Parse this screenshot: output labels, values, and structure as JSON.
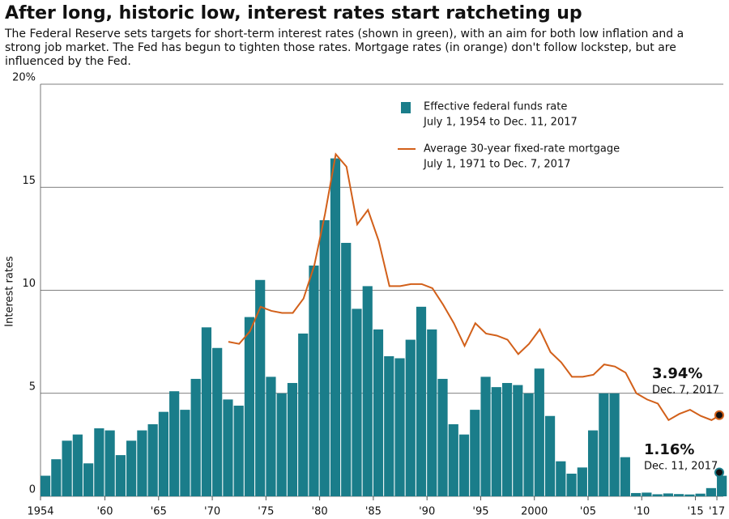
{
  "chart_data": {
    "type": "bar-line",
    "title": "After long, historic low, interest rates start ratcheting up",
    "subtitle": "The Federal Reserve sets targets for short-term interest rates (shown in green), with an aim for both low inflation and a strong job market. The Fed has begun to tighten those rates. Mortgage rates (in orange) don't follow lockstep, but are influenced by the Fed.",
    "y_label": "Interest rates",
    "x": [
      1954,
      1955,
      1956,
      1957,
      1958,
      1959,
      1960,
      1961,
      1962,
      1963,
      1964,
      1965,
      1966,
      1967,
      1968,
      1969,
      1970,
      1971,
      1972,
      1973,
      1974,
      1975,
      1976,
      1977,
      1978,
      1979,
      1980,
      1981,
      1982,
      1983,
      1984,
      1985,
      1986,
      1987,
      1988,
      1989,
      1990,
      1991,
      1992,
      1993,
      1994,
      1995,
      1996,
      1997,
      1998,
      1999,
      2000,
      2001,
      2002,
      2003,
      2004,
      2005,
      2006,
      2007,
      2008,
      2009,
      2010,
      2011,
      2012,
      2013,
      2014,
      2015,
      2016,
      2017
    ],
    "series": [
      {
        "name": "Effective federal funds rate",
        "range": "July 1, 1954 to Dec. 11, 2017",
        "color": "#1a7d8a",
        "kind": "bar",
        "values": [
          1.0,
          1.8,
          2.7,
          3.0,
          1.6,
          3.3,
          3.2,
          2.0,
          2.7,
          3.2,
          3.5,
          4.1,
          5.1,
          4.2,
          5.7,
          8.2,
          7.2,
          4.7,
          4.4,
          8.7,
          10.5,
          5.8,
          5.0,
          5.5,
          7.9,
          11.2,
          13.4,
          16.4,
          12.3,
          9.1,
          10.2,
          8.1,
          6.8,
          6.7,
          7.6,
          9.2,
          8.1,
          5.7,
          3.5,
          3.0,
          4.2,
          5.8,
          5.3,
          5.5,
          5.4,
          5.0,
          6.2,
          3.9,
          1.7,
          1.1,
          1.4,
          3.2,
          5.0,
          5.0,
          1.9,
          0.16,
          0.18,
          0.1,
          0.14,
          0.11,
          0.09,
          0.13,
          0.4,
          1.0
        ]
      },
      {
        "name": "Average 30-year fixed-rate mortgage",
        "range": "July 1, 1971 to Dec. 7, 2017",
        "color": "#d2601a",
        "kind": "line",
        "values": [
          null,
          null,
          null,
          null,
          null,
          null,
          null,
          null,
          null,
          null,
          null,
          null,
          null,
          null,
          null,
          null,
          null,
          7.5,
          7.4,
          8.0,
          9.2,
          9.0,
          8.9,
          8.9,
          9.6,
          11.2,
          13.7,
          16.6,
          16.0,
          13.2,
          13.9,
          12.4,
          10.2,
          10.2,
          10.3,
          10.3,
          10.1,
          9.3,
          8.4,
          7.3,
          8.4,
          7.9,
          7.8,
          7.6,
          6.9,
          7.4,
          8.1,
          7.0,
          6.5,
          5.8,
          5.8,
          5.9,
          6.4,
          6.3,
          6.0,
          5.0,
          4.7,
          4.5,
          3.7,
          4.0,
          4.2,
          3.9,
          3.7,
          4.0
        ]
      }
    ],
    "annotations": [
      {
        "value": 3.94,
        "label": "3.94%",
        "date": "Dec. 7, 2017",
        "series": 1
      },
      {
        "value": 1.16,
        "label": "1.16%",
        "date": "Dec. 11, 2017",
        "series": 0
      }
    ],
    "xlim": [
      1954,
      2017.6
    ],
    "xticks": [
      {
        "value": 1954,
        "label": "1954"
      },
      {
        "value": 1960,
        "label": "'60"
      },
      {
        "value": 1965,
        "label": "'65"
      },
      {
        "value": 1970,
        "label": "'70"
      },
      {
        "value": 1975,
        "label": "'75"
      },
      {
        "value": 1980,
        "label": "'80"
      },
      {
        "value": 1985,
        "label": "'85"
      },
      {
        "value": 1990,
        "label": "'90"
      },
      {
        "value": 1995,
        "label": "'95"
      },
      {
        "value": 2000,
        "label": "2000"
      },
      {
        "value": 2005,
        "label": "'05"
      },
      {
        "value": 2010,
        "label": "'10"
      },
      {
        "value": 2015,
        "label": "'15"
      },
      {
        "value": 2017,
        "label": "'17"
      }
    ],
    "ylim": [
      0,
      20
    ],
    "yticks": [
      0,
      5,
      10,
      15,
      {
        "value": 20,
        "label": "20%"
      }
    ],
    "grid": true
  }
}
